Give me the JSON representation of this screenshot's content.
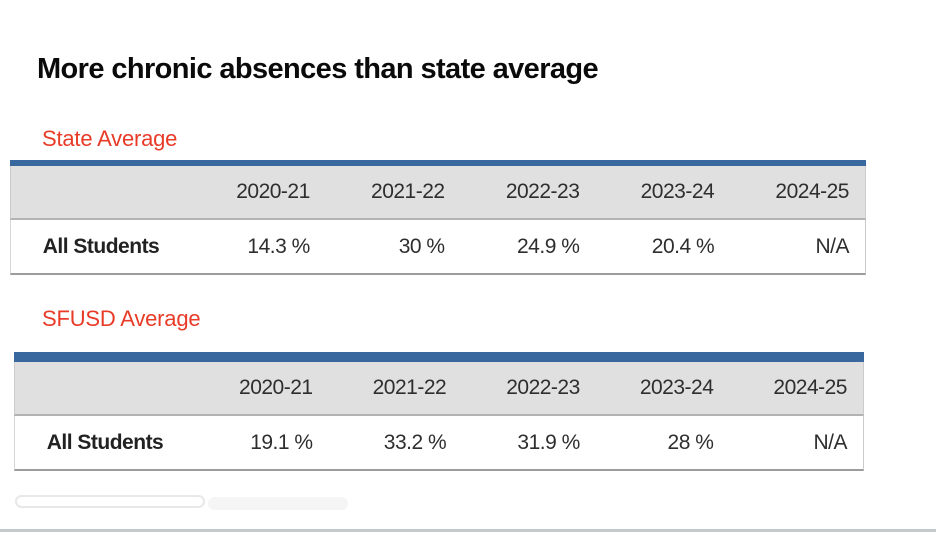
{
  "title": "More chronic absences than state average",
  "colors": {
    "accent_blue": "#38689e",
    "accent_red": "#e83b28",
    "header_gray": "#e0e0e0",
    "bottom_rule_gray": "#c4c9cb"
  },
  "sections": [
    {
      "label": "State Average",
      "table": {
        "columns": [
          "2020-21",
          "2021-22",
          "2022-23",
          "2023-24",
          "2024-25"
        ],
        "row_label": "All Students",
        "values": [
          "14.3 %",
          "30 %",
          "24.9 %",
          "20.4 %",
          "N/A"
        ]
      }
    },
    {
      "label": "SFUSD Average",
      "table": {
        "columns": [
          "2020-21",
          "2021-22",
          "2022-23",
          "2023-24",
          "2024-25"
        ],
        "row_label": "All Students",
        "values": [
          "19.1 %",
          "33.2 %",
          "31.9 %",
          "28 %",
          "N/A"
        ]
      }
    }
  ],
  "chart_data": [
    {
      "type": "table",
      "title": "State Average",
      "categories": [
        "2020-21",
        "2021-22",
        "2022-23",
        "2023-24",
        "2024-25"
      ],
      "series": [
        {
          "name": "All Students",
          "values": [
            14.3,
            30,
            24.9,
            20.4,
            null
          ]
        }
      ]
    },
    {
      "type": "table",
      "title": "SFUSD Average",
      "categories": [
        "2020-21",
        "2021-22",
        "2022-23",
        "2023-24",
        "2024-25"
      ],
      "series": [
        {
          "name": "All Students",
          "values": [
            19.1,
            33.2,
            31.9,
            28,
            null
          ]
        }
      ]
    }
  ]
}
